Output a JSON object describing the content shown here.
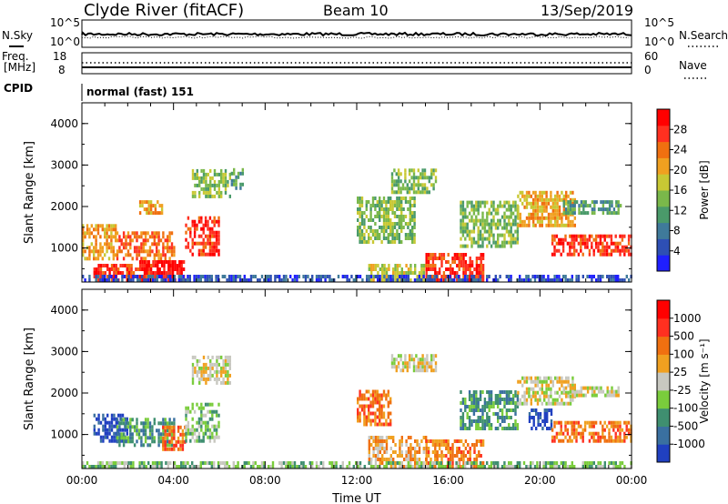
{
  "header": {
    "station": "Clyde River (fitACF)",
    "beam": "Beam 10",
    "date": "13/Sep/2019"
  },
  "panels": {
    "nsky_label": "N.Sky",
    "nsky_ticks": [
      "10^5",
      "10^0"
    ],
    "nsearch_label": "N.Search",
    "nsearch_ticks": [
      "10^5",
      "10^0"
    ],
    "freq_label": "Freq.",
    "freq_unit": "[MHz]",
    "freq_ticks": [
      "18",
      "8"
    ],
    "nave_label": "Nave",
    "nave_ticks": [
      "60",
      "0"
    ],
    "cpid_label": "CPID",
    "cpid_value": "normal (fast) 151"
  },
  "chart_data": [
    {
      "type": "heatmap",
      "title": "",
      "xlabel": "Time UT",
      "ylabel": "Slant Range [km]",
      "x_range_hours": [
        0,
        24
      ],
      "x_ticks": [
        "00:00",
        "04:00",
        "08:00",
        "12:00",
        "16:00",
        "20:00",
        "00:00"
      ],
      "ylim": [
        180,
        4500
      ],
      "y_ticks": [
        1000,
        2000,
        3000,
        4000
      ],
      "colorbar": {
        "label": "Power [dB]",
        "ticks": [
          "4",
          "8",
          "12",
          "16",
          "20",
          "24",
          "28"
        ],
        "colors": [
          "#1f1fff",
          "#2e4fb4",
          "#3f7a9a",
          "#4a9a6a",
          "#7ab84a",
          "#c8c834",
          "#f0a020",
          "#f07010",
          "#ff3020",
          "#ff0000"
        ]
      },
      "regions": [
        {
          "t": [
            0.0,
            1.5
          ],
          "r": [
            700,
            1500
          ],
          "level": 6
        },
        {
          "t": [
            1.5,
            4.0
          ],
          "r": [
            700,
            1400
          ],
          "level": 7
        },
        {
          "t": [
            2.5,
            4.5
          ],
          "r": [
            180,
            700
          ],
          "level": 9
        },
        {
          "t": [
            0.5,
            3.0
          ],
          "r": [
            180,
            600
          ],
          "level": 8
        },
        {
          "t": [
            4.5,
            6.0
          ],
          "r": [
            800,
            1700
          ],
          "level": 8
        },
        {
          "t": [
            2.5,
            3.5
          ],
          "r": [
            1800,
            2100
          ],
          "level": 6
        },
        {
          "t": [
            4.8,
            6.5
          ],
          "r": [
            2200,
            2900
          ],
          "level": 4
        },
        {
          "t": [
            6.5,
            7.0
          ],
          "r": [
            2400,
            2900
          ],
          "level": 3
        },
        {
          "t": [
            12.0,
            14.5
          ],
          "r": [
            1100,
            2200
          ],
          "level": 4
        },
        {
          "t": [
            12.5,
            15.0
          ],
          "r": [
            180,
            600
          ],
          "level": 5
        },
        {
          "t": [
            13.5,
            15.5
          ],
          "r": [
            2300,
            2900
          ],
          "level": 4
        },
        {
          "t": [
            15.0,
            17.5
          ],
          "r": [
            180,
            800
          ],
          "level": 8
        },
        {
          "t": [
            16.5,
            19.0
          ],
          "r": [
            1000,
            2100
          ],
          "level": 4
        },
        {
          "t": [
            19.0,
            21.5
          ],
          "r": [
            1500,
            2300
          ],
          "level": 6
        },
        {
          "t": [
            20.5,
            24.0
          ],
          "r": [
            800,
            1300
          ],
          "level": 8
        },
        {
          "t": [
            21.0,
            23.5
          ],
          "r": [
            1800,
            2100
          ],
          "level": 3
        },
        {
          "t": [
            0.0,
            24.0
          ],
          "r": [
            180,
            300
          ],
          "level": 1
        }
      ]
    },
    {
      "type": "heatmap",
      "title": "",
      "xlabel": "Time UT",
      "ylabel": "Slant Range [km]",
      "x_range_hours": [
        0,
        24
      ],
      "x_ticks": [
        "00:00",
        "04:00",
        "08:00",
        "12:00",
        "16:00",
        "20:00",
        "00:00"
      ],
      "ylim": [
        180,
        4500
      ],
      "y_ticks": [
        1000,
        2000,
        3000,
        4000
      ],
      "colorbar": {
        "label": "Velocity [m s⁻¹]",
        "ticks": [
          "1000",
          "500",
          "100",
          "25",
          "-25",
          "-100",
          "-500",
          "-1000"
        ],
        "colors": [
          "#2040c0",
          "#3a70a0",
          "#3f8f70",
          "#7acc3c",
          "#c8c8c0",
          "#f0a020",
          "#f07010",
          "#ff3020",
          "#ff0000"
        ]
      },
      "regions": [
        {
          "t": [
            0.5,
            2.0
          ],
          "r": [
            800,
            1500
          ],
          "level": 0
        },
        {
          "t": [
            1.5,
            4.0
          ],
          "r": [
            700,
            1400
          ],
          "level": 2
        },
        {
          "t": [
            3.5,
            4.5
          ],
          "r": [
            600,
            1200
          ],
          "level": 6
        },
        {
          "t": [
            4.5,
            6.0
          ],
          "r": [
            800,
            1700
          ],
          "level": 3
        },
        {
          "t": [
            4.8,
            6.5
          ],
          "r": [
            2200,
            2900
          ],
          "level": 4
        },
        {
          "t": [
            12.0,
            13.5
          ],
          "r": [
            1200,
            2000
          ],
          "level": 6
        },
        {
          "t": [
            13.5,
            15.5
          ],
          "r": [
            2500,
            2900
          ],
          "level": 4
        },
        {
          "t": [
            12.5,
            15.0
          ],
          "r": [
            180,
            900
          ],
          "level": 5
        },
        {
          "t": [
            15.0,
            17.5
          ],
          "r": [
            180,
            800
          ],
          "level": 6
        },
        {
          "t": [
            16.5,
            19.0
          ],
          "r": [
            1100,
            2000
          ],
          "level": 2
        },
        {
          "t": [
            19.0,
            21.5
          ],
          "r": [
            1700,
            2400
          ],
          "level": 4
        },
        {
          "t": [
            19.5,
            20.5
          ],
          "r": [
            1100,
            1600
          ],
          "level": 0
        },
        {
          "t": [
            20.5,
            24.0
          ],
          "r": [
            800,
            1300
          ],
          "level": 6
        },
        {
          "t": [
            21.0,
            23.5
          ],
          "r": [
            1900,
            2100
          ],
          "level": 4
        },
        {
          "t": [
            0.0,
            24.0
          ],
          "r": [
            180,
            280
          ],
          "level": 3
        }
      ]
    }
  ]
}
